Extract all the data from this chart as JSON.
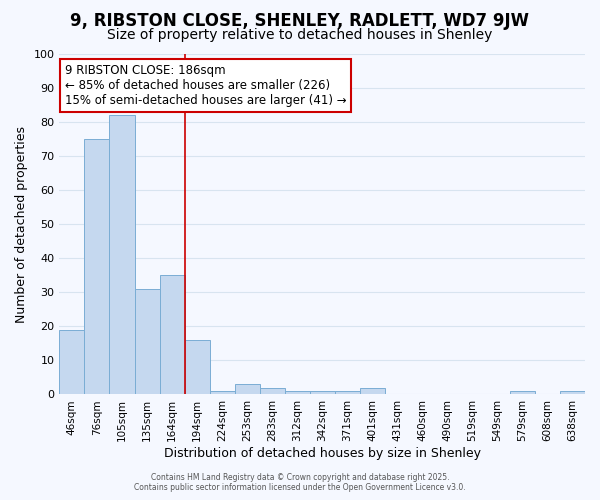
{
  "title": "9, RIBSTON CLOSE, SHENLEY, RADLETT, WD7 9JW",
  "subtitle": "Size of property relative to detached houses in Shenley",
  "xlabel": "Distribution of detached houses by size in Shenley",
  "ylabel": "Number of detached properties",
  "bins": [
    "46sqm",
    "76sqm",
    "105sqm",
    "135sqm",
    "164sqm",
    "194sqm",
    "224sqm",
    "253sqm",
    "283sqm",
    "312sqm",
    "342sqm",
    "371sqm",
    "401sqm",
    "431sqm",
    "460sqm",
    "490sqm",
    "519sqm",
    "549sqm",
    "579sqm",
    "608sqm",
    "638sqm"
  ],
  "values": [
    19,
    75,
    82,
    31,
    35,
    16,
    1,
    3,
    2,
    1,
    1,
    1,
    2,
    0,
    0,
    0,
    0,
    0,
    1,
    0,
    1
  ],
  "bar_color": "#c5d8ef",
  "bar_edge_color": "#7aadd4",
  "vline_x_index": 5,
  "vline_color": "#cc0000",
  "annotation_line1": "9 RIBSTON CLOSE: 186sqm",
  "annotation_line2": "← 85% of detached houses are smaller (226)",
  "annotation_line3": "15% of semi-detached houses are larger (41) →",
  "annotation_box_color": "#ffffff",
  "annotation_box_edge_color": "#cc0000",
  "ylim": [
    0,
    100
  ],
  "yticks": [
    0,
    10,
    20,
    30,
    40,
    50,
    60,
    70,
    80,
    90,
    100
  ],
  "footer1": "Contains HM Land Registry data © Crown copyright and database right 2025.",
  "footer2": "Contains public sector information licensed under the Open Government Licence v3.0.",
  "bg_color": "#f5f8ff",
  "grid_color": "#d8e4f0",
  "title_fontsize": 12,
  "subtitle_fontsize": 10,
  "ann_fontsize": 8.5
}
